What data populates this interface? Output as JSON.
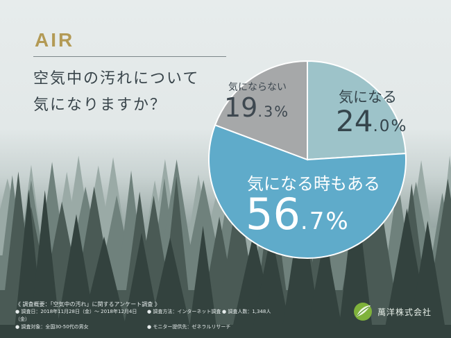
{
  "header": {
    "brand": "AIR",
    "question_line1": "空気中の汚れについて",
    "question_line2": "気になりますか？"
  },
  "chart_data": {
    "type": "pie",
    "title": "空気中の汚れについて気になりますか？",
    "slices": [
      {
        "label": "気になる",
        "value": 24.0,
        "pct_int": "24",
        "pct_dec": ".0%",
        "color": "#9dc3c9",
        "text_color": "#35454c"
      },
      {
        "label": "気になる時もある",
        "value": 56.7,
        "pct_int": "56",
        "pct_dec": ".7%",
        "color": "#5fabca",
        "text_color": "#ffffff"
      },
      {
        "label": "気にならない",
        "value": 19.3,
        "pct_int": "19",
        "pct_dec": ".3%",
        "color": "#a6a8a9",
        "text_color": "#3e4850"
      }
    ]
  },
  "footer": {
    "title": "《 調査概要：「空気中の汚れ」に関するアンケート調査 》",
    "date": "● 調査日：2018年11月28日（金）～ 2018年12月4日（金）",
    "method": "● 調査方法：インターネット調査",
    "count": "● 調査人数：1,348人",
    "target": "● 調査対象：全国30-50代の男女",
    "monitor": "● モニター提供先：ゼネラルリサーチ"
  },
  "company": {
    "name": "萬洋株式会社"
  },
  "colors": {
    "accent": "#b39a55"
  }
}
